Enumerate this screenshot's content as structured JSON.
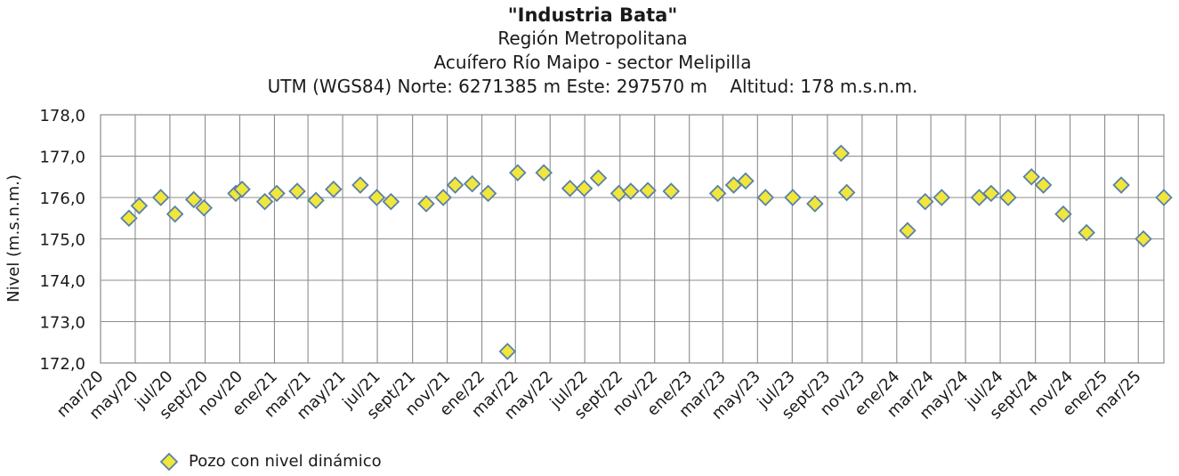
{
  "chart_data": {
    "type": "scatter",
    "title": "\"Industria Bata\"",
    "subtitles": [
      "Región Metropolitana",
      "Acuífero Río Maipo - sector Melipilla",
      "UTM (WGS84) Norte: 6271385 m Este: 297570 m    Altitud: 178 m.s.n.m."
    ],
    "ylabel": "Nivel (m.s.n.m.)",
    "xlabel": "",
    "ylim": [
      172.0,
      178.0
    ],
    "yticks": [
      "172,0",
      "173,0",
      "174,0",
      "175,0",
      "176,0",
      "177,0",
      "178,0"
    ],
    "xlim": [
      "2020-03-01",
      "2025-04-15"
    ],
    "xticks": [
      "mar/20",
      "may/20",
      "jul/20",
      "sept/20",
      "nov/20",
      "ene/21",
      "mar/21",
      "may/21",
      "jul/21",
      "sept/21",
      "nov/21",
      "ene/22",
      "mar/22",
      "may/22",
      "jul/22",
      "sept/22",
      "nov/22",
      "ene/23",
      "mar/23",
      "may/23",
      "jul/23",
      "sept/23",
      "nov/23",
      "ene/24",
      "mar/24",
      "may/24",
      "jul/24",
      "sept/24",
      "nov/24",
      "ene/25",
      "mar/25"
    ],
    "grid": true,
    "legend_position": "bottom-left",
    "series": [
      {
        "name": "Pozo con nivel dinámico",
        "marker": "diamond",
        "color": "#f0e63c",
        "edge_color": "#5a80a8",
        "points": [
          {
            "x": "2020-04-20",
            "y": 175.5
          },
          {
            "x": "2020-05-08",
            "y": 175.8
          },
          {
            "x": "2020-06-15",
            "y": 176.0
          },
          {
            "x": "2020-07-10",
            "y": 175.6
          },
          {
            "x": "2020-08-12",
            "y": 175.95
          },
          {
            "x": "2020-08-30",
            "y": 175.75
          },
          {
            "x": "2020-10-25",
            "y": 176.1
          },
          {
            "x": "2020-11-05",
            "y": 176.2
          },
          {
            "x": "2020-12-15",
            "y": 175.9
          },
          {
            "x": "2021-01-05",
            "y": 176.1
          },
          {
            "x": "2021-02-10",
            "y": 176.15
          },
          {
            "x": "2021-03-15",
            "y": 175.93
          },
          {
            "x": "2021-04-15",
            "y": 176.2
          },
          {
            "x": "2021-06-01",
            "y": 176.3
          },
          {
            "x": "2021-06-30",
            "y": 176.0
          },
          {
            "x": "2021-07-25",
            "y": 175.9
          },
          {
            "x": "2021-09-25",
            "y": 175.85
          },
          {
            "x": "2021-10-25",
            "y": 176.0
          },
          {
            "x": "2021-11-15",
            "y": 176.3
          },
          {
            "x": "2021-12-15",
            "y": 176.33
          },
          {
            "x": "2022-01-12",
            "y": 176.1
          },
          {
            "x": "2022-02-15",
            "y": 172.28
          },
          {
            "x": "2022-03-05",
            "y": 176.6
          },
          {
            "x": "2022-04-20",
            "y": 176.6
          },
          {
            "x": "2022-06-05",
            "y": 176.22
          },
          {
            "x": "2022-06-30",
            "y": 176.22
          },
          {
            "x": "2022-07-25",
            "y": 176.47
          },
          {
            "x": "2022-08-30",
            "y": 176.1
          },
          {
            "x": "2022-09-20",
            "y": 176.15
          },
          {
            "x": "2022-10-20",
            "y": 176.17
          },
          {
            "x": "2022-11-30",
            "y": 176.15
          },
          {
            "x": "2023-02-20",
            "y": 176.1
          },
          {
            "x": "2023-03-20",
            "y": 176.3
          },
          {
            "x": "2023-04-10",
            "y": 176.4
          },
          {
            "x": "2023-05-15",
            "y": 176.0
          },
          {
            "x": "2023-07-02",
            "y": 176.0
          },
          {
            "x": "2023-08-10",
            "y": 175.85
          },
          {
            "x": "2023-09-25",
            "y": 177.07
          },
          {
            "x": "2023-10-05",
            "y": 176.12
          },
          {
            "x": "2024-01-20",
            "y": 175.2
          },
          {
            "x": "2024-02-20",
            "y": 175.9
          },
          {
            "x": "2024-03-20",
            "y": 176.0
          },
          {
            "x": "2024-05-25",
            "y": 176.0
          },
          {
            "x": "2024-06-15",
            "y": 176.1
          },
          {
            "x": "2024-07-15",
            "y": 176.0
          },
          {
            "x": "2024-08-25",
            "y": 176.5
          },
          {
            "x": "2024-09-15",
            "y": 176.3
          },
          {
            "x": "2024-10-20",
            "y": 175.6
          },
          {
            "x": "2024-11-30",
            "y": 175.15
          },
          {
            "x": "2025-01-30",
            "y": 176.3
          },
          {
            "x": "2025-03-10",
            "y": 175.0
          },
          {
            "x": "2025-04-15",
            "y": 176.0
          }
        ]
      }
    ]
  }
}
